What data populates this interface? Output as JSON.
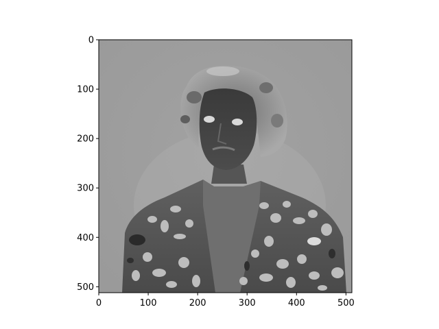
{
  "chart_data": {
    "type": "heatmap",
    "content": "grayscale image",
    "colormap": "gray",
    "x_range": [
      0,
      512
    ],
    "y_range": [
      512,
      0
    ],
    "y_axis_inverted": true,
    "x_ticks": [
      0,
      100,
      200,
      300,
      400,
      500
    ],
    "y_ticks": [
      0,
      100,
      200,
      300,
      400,
      500
    ],
    "grid": false,
    "title": "",
    "xlabel": "",
    "ylabel": ""
  }
}
